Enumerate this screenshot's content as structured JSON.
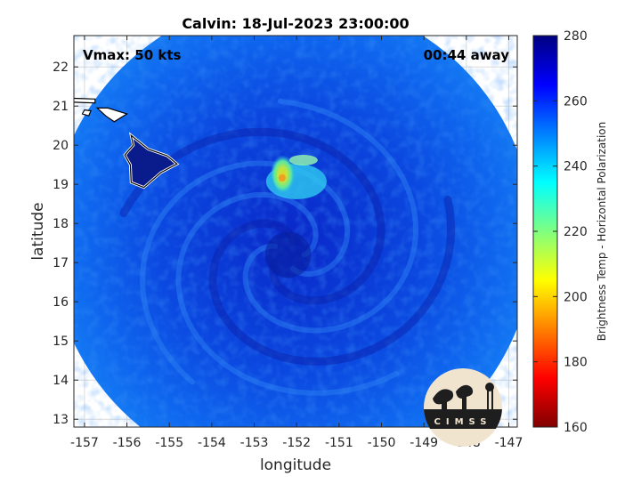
{
  "chart_data": {
    "type": "heatmap",
    "title": "Calvin: 18-Jul-2023 23:00:00",
    "xlabel": "longitude",
    "ylabel": "latitude",
    "xlim": [
      -157.25,
      -146.8
    ],
    "ylim": [
      12.8,
      22.8
    ],
    "xticks": [
      -157,
      -156,
      -155,
      -154,
      -153,
      -152,
      -151,
      -150,
      -149,
      -148,
      -147
    ],
    "yticks": [
      13,
      14,
      15,
      16,
      17,
      18,
      19,
      20,
      21,
      22
    ],
    "annotations": {
      "top_left": "Vmax: 50 kts",
      "top_right": "00:44 away"
    },
    "colorbar": {
      "label": "Brightness Temp - Horizontal Polarization",
      "range": [
        160,
        280
      ],
      "ticks": [
        160,
        180,
        200,
        220,
        240,
        260,
        280
      ],
      "colormap": "jet"
    },
    "swath": {
      "center": [
        -152.1,
        17.6
      ],
      "radius_deg": 5.7,
      "typical_value": 258
    },
    "storm_center": [
      -152.2,
      17.2
    ],
    "warm_core": {
      "center": [
        -152.3,
        19.3
      ],
      "min_value": 205
    },
    "grid": true,
    "legend": "none"
  },
  "logo": {
    "text": "CIMSS"
  },
  "colors": {
    "background": "#ffffff",
    "frame": "#262626",
    "grid": "#dcdcdc"
  }
}
